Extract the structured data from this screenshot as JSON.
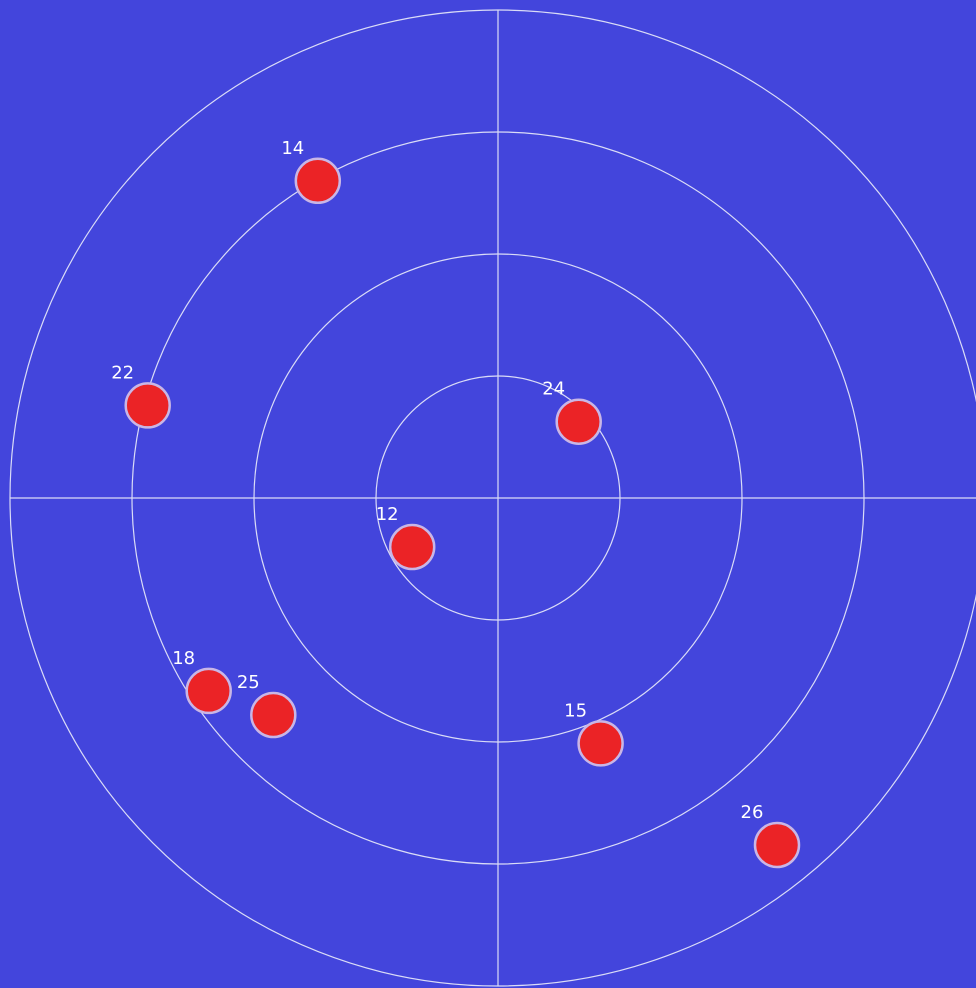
{
  "chart_data": {
    "type": "scatter",
    "coordinate_system": "polar",
    "title": "",
    "xlabel": "",
    "ylabel": "",
    "grid": true,
    "rings": 4,
    "radial_range": [
      0,
      4
    ],
    "colors": {
      "background": "#4345DC",
      "grid": "#DADCF7",
      "point_fill": "#EB2326",
      "point_stroke": "#C9B6E6",
      "label": "#FFFFFF"
    },
    "points": [
      {
        "label": "14",
        "r": 2.99,
        "angle_deg": 119.6
      },
      {
        "label": "22",
        "r": 2.97,
        "angle_deg": 165.2
      },
      {
        "label": "24",
        "r": 0.91,
        "angle_deg": 43.4
      },
      {
        "label": "12",
        "r": 0.81,
        "angle_deg": 209.7
      },
      {
        "label": "18",
        "r": 2.85,
        "angle_deg": 213.7
      },
      {
        "label": "25",
        "r": 2.56,
        "angle_deg": 224.0
      },
      {
        "label": "15",
        "r": 2.18,
        "angle_deg": 292.7
      },
      {
        "label": "26",
        "r": 3.65,
        "angle_deg": 308.8
      }
    ]
  }
}
